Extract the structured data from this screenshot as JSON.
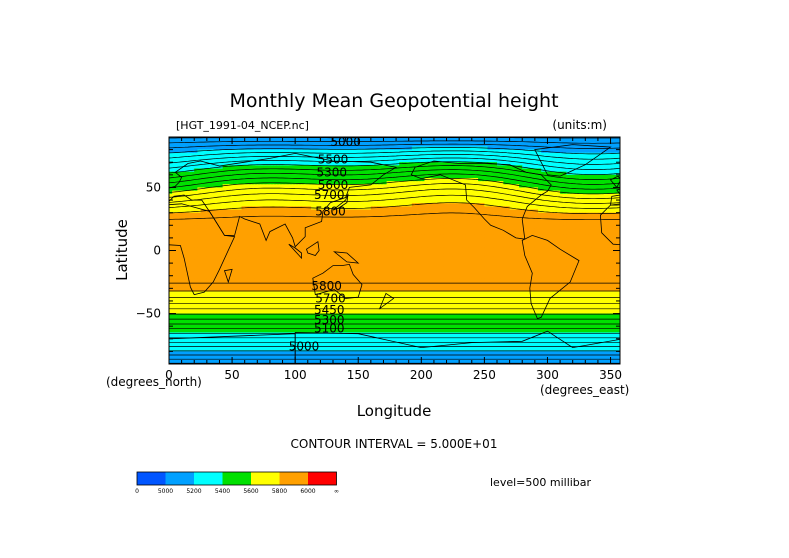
{
  "chart_data": {
    "type": "contour",
    "title": "Monthly Mean Geopotential height",
    "subtitle_left": "[HGT_1991-04_NCEP.nc]",
    "subtitle_right": "(units:m)",
    "xlabel": "Longitude",
    "ylabel": "Latitude",
    "x_units": "(degrees_east)",
    "y_units": "(degrees_north)",
    "xlim": [
      0,
      357.5
    ],
    "ylim": [
      -90,
      90
    ],
    "x_ticks": [
      0,
      50,
      100,
      150,
      200,
      250,
      300,
      350
    ],
    "y_ticks": [
      -50,
      0,
      50
    ],
    "contour_interval_text": "CONTOUR INTERVAL = 5.000E+01",
    "level_text": "level=500 millibar",
    "contour_labels": [
      {
        "text": "5000",
        "lon": 140,
        "lat": 86
      },
      {
        "text": "5500",
        "lon": 130,
        "lat": 72
      },
      {
        "text": "5300",
        "lon": 129,
        "lat": 62
      },
      {
        "text": "5600",
        "lon": 130,
        "lat": 52
      },
      {
        "text": "5700",
        "lon": 127,
        "lat": 44
      },
      {
        "text": "5800",
        "lon": 128,
        "lat": 31
      },
      {
        "text": "5800",
        "lon": 125,
        "lat": -28
      },
      {
        "text": "5700",
        "lon": 128,
        "lat": -38
      },
      {
        "text": "5450",
        "lon": 127,
        "lat": -47
      },
      {
        "text": "5300",
        "lon": 127,
        "lat": -55
      },
      {
        "text": "5100",
        "lon": 127,
        "lat": -62
      },
      {
        "text": "5000",
        "lon": 107,
        "lat": -76
      }
    ],
    "colorbar": {
      "labels": [
        "0",
        "5000",
        "5200",
        "5400",
        "5600",
        "5800",
        "6000",
        "∞"
      ],
      "colors": [
        "#0055ff",
        "#00a0ff",
        "#00ffff",
        "#00e000",
        "#ffff00",
        "#ffa000",
        "#ff0000"
      ]
    }
  }
}
